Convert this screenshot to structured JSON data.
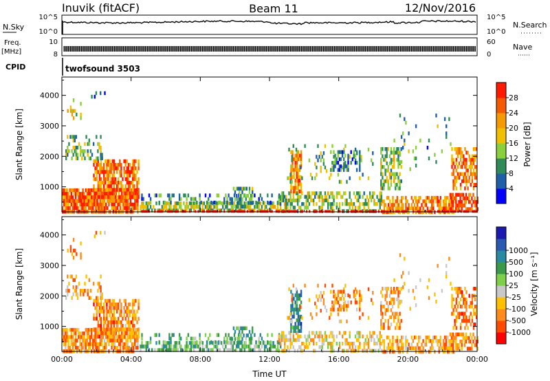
{
  "header": {
    "station": "Inuvik (fitACF)",
    "beam": "Beam 11",
    "date": "12/Nov/2016"
  },
  "labels": {
    "nsky": "N.Sky",
    "nsearch": "N.Search",
    "freq": "Freq.",
    "mhz": "[MHz]",
    "nave": "Nave",
    "cpid": "CPID",
    "program": "twofsound 3503",
    "nsky_top": "10^5",
    "nsky_bottom": "10^0",
    "freq_top": "10",
    "freq_bottom": "8",
    "nave_top": "60",
    "nave_bottom": "0"
  },
  "colors": {
    "power": [
      "#0000ff",
      "#1f5fa8",
      "#2f8c58",
      "#8ccf3c",
      "#f0c000",
      "#f59a00",
      "#f55a00",
      "#ff1a00"
    ],
    "velocity": [
      "#ff0000",
      "#ff4a00",
      "#ff8c1a",
      "#ffc000",
      "#c8c8c8",
      "#7ed04a",
      "#3a9a4a",
      "#2a8aa0",
      "#2a5ab0",
      "#1a1ab0"
    ]
  },
  "chart_data": [
    {
      "type": "heatmap",
      "name": "power",
      "ylabel": "Slant Range [km]",
      "xlabel": "",
      "xlim": [
        "00:00",
        "24:00"
      ],
      "ylim": [
        180,
        4600
      ],
      "xticks": [
        "00:00",
        "04:00",
        "08:00",
        "12:00",
        "16:00",
        "20:00",
        "00:00"
      ],
      "yticks": [
        1000,
        2000,
        3000,
        4000
      ],
      "colorbar": {
        "label": "Power [dB]",
        "ticks": [
          "4",
          "8",
          "12",
          "16",
          "20",
          "24",
          "28"
        ],
        "range": [
          0,
          32
        ]
      },
      "regions": [
        {
          "start_h": 0.0,
          "end_h": 4.5,
          "min_km": 200,
          "max_km": 1000,
          "level": 28
        },
        {
          "start_h": 1.8,
          "end_h": 4.4,
          "min_km": 700,
          "max_km": 1900,
          "level": 28
        },
        {
          "start_h": 0.2,
          "end_h": 2.2,
          "min_km": 2000,
          "max_km": 2700,
          "level": 12
        },
        {
          "start_h": 4.5,
          "end_h": 12.5,
          "min_km": 200,
          "max_km": 700,
          "level": 16
        },
        {
          "start_h": 12.5,
          "end_h": 18.5,
          "min_km": 200,
          "max_km": 900,
          "level": 16
        },
        {
          "start_h": 13.2,
          "end_h": 13.8,
          "min_km": 1000,
          "max_km": 2200,
          "level": 28
        },
        {
          "start_h": 15.5,
          "end_h": 17.0,
          "min_km": 1500,
          "max_km": 2200,
          "level": 8
        },
        {
          "start_h": 18.5,
          "end_h": 19.5,
          "min_km": 1100,
          "max_km": 2200,
          "level": 12
        },
        {
          "start_h": 18.5,
          "end_h": 22.5,
          "min_km": 200,
          "max_km": 700,
          "level": 24
        },
        {
          "start_h": 22.5,
          "end_h": 24.0,
          "min_km": 1000,
          "max_km": 2200,
          "level": 28
        }
      ]
    },
    {
      "type": "heatmap",
      "name": "velocity",
      "ylabel": "Slant Range [km]",
      "xlabel": "Time UT",
      "xlim": [
        "00:00",
        "24:00"
      ],
      "ylim": [
        180,
        4600
      ],
      "xticks": [
        "00:00",
        "04:00",
        "08:00",
        "12:00",
        "16:00",
        "20:00",
        "00:00"
      ],
      "yticks": [
        1000,
        2000,
        3000,
        4000
      ],
      "colorbar": {
        "label": "Velocity [m s⁻¹]",
        "ticks": [
          "-1000",
          "-500",
          "-100",
          "-25",
          "25",
          "100",
          "500",
          "1000"
        ]
      },
      "regions": [
        {
          "start_h": 0.0,
          "end_h": 4.5,
          "min_km": 200,
          "max_km": 1000,
          "level": -100
        },
        {
          "start_h": 1.8,
          "end_h": 4.4,
          "min_km": 700,
          "max_km": 1900,
          "level": -100
        },
        {
          "start_h": 4.5,
          "end_h": 12.5,
          "min_km": 200,
          "max_km": 700,
          "level": 100
        },
        {
          "start_h": 12.5,
          "end_h": 18.5,
          "min_km": 200,
          "max_km": 900,
          "level": -100
        },
        {
          "start_h": 13.2,
          "end_h": 13.8,
          "min_km": 1000,
          "max_km": 2200,
          "level": 500
        },
        {
          "start_h": 18.5,
          "end_h": 22.5,
          "min_km": 200,
          "max_km": 700,
          "level": -100
        },
        {
          "start_h": 22.5,
          "end_h": 24.0,
          "min_km": 1000,
          "max_km": 2200,
          "level": -100
        }
      ]
    }
  ]
}
